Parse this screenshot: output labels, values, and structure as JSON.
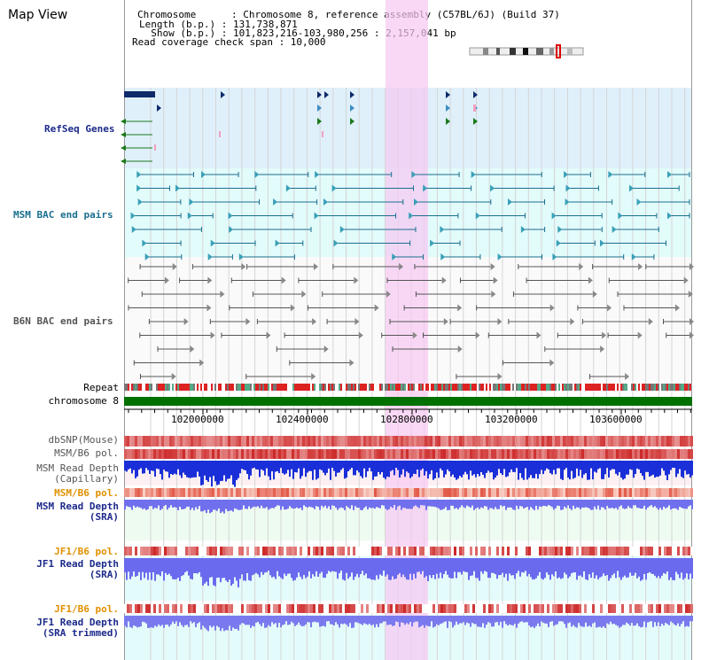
{
  "page": {
    "title": "Map View"
  },
  "info": {
    "chromosome": "Chromosome      : Chromosome 8, reference assembly (C57BL/6J) (Build 37)",
    "length": "Length (b.p.) : 131,738,871",
    "show": "  Show (b.p.) : 101,823,216-103,980,256 : 2,157,041 bp",
    "coverage": "Read coverage check span : 10,000"
  },
  "tracks": {
    "refseq": "RefSeq Genes",
    "msm_bac": "MSM BAC end pairs",
    "b6n_bac": "B6N BAC end pairs",
    "repeat": "Repeat",
    "chromosome": "chromosome 8",
    "dbsnp": "dbSNP(Mouse)",
    "msm_b6_pol": "MSM/B6 pol.",
    "msm_read_depth_cap_1": "MSM Read Depth",
    "msm_read_depth_cap_2": "(Capillary)",
    "msm_b6_pol_2": "MSM/B6 pol.",
    "msm_read_depth_sra_1": "MSM Read Depth",
    "msm_read_depth_sra_2": "(SRA)",
    "jf1_b6_pol": "JF1/B6 pol.",
    "jf1_read_depth_1": "JF1 Read Depth",
    "jf1_read_depth_2": "(SRA)",
    "jf1_b6_pol_2": "JF1/B6 pol.",
    "jf1_trim_1": "JF1 Read Depth",
    "jf1_trim_2": "(SRA trimmed)"
  },
  "axis": {
    "ticks": [
      "102000000",
      "102400000",
      "102800000",
      "103200000",
      "103600000"
    ]
  },
  "colors": {
    "refseq_bg": "#dff0fb",
    "bac_bg": "#e2fbfb",
    "highlight": "#f9d9f6",
    "chrom_green": "#007000",
    "label_blue": "#1c2a8a",
    "label_orange": "#e09000",
    "msm_teal": "#1a6f8f",
    "grid": "#d5d5d5"
  }
}
